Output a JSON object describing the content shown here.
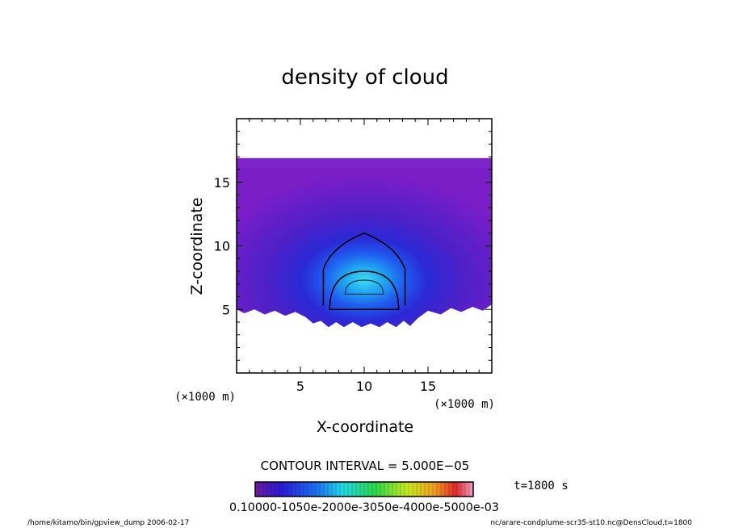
{
  "chart_data": {
    "type": "heatmap",
    "title": "density of cloud",
    "xlabel": "X-coordinate",
    "ylabel": "Z-coordinate",
    "x_unit": "(×1000 m)",
    "y_unit": "(×1000 m)",
    "xlim": [
      0,
      20
    ],
    "ylim": [
      0,
      20
    ],
    "x_ticks": [
      5,
      10,
      15
    ],
    "y_ticks": [
      5,
      10,
      15
    ],
    "contour_interval_label": "CONTOUR INTERVAL = 5.000E−05",
    "time_label": "t=1800 s",
    "colorbar_labels": "0.10000-1050e-2000e-3050e-4000e-5000e-03",
    "colorbar_range": [
      0.0,
      0.0005
    ],
    "footer_left": "/home/kitamo/bin/gpview_dump   2006-02-17",
    "footer_right": "nc/arare-condplume-scr35-st10.nc@DensCloud,t=1800",
    "field": {
      "top_z": 16.9,
      "bottom_edge_z_range": [
        3.6,
        5.2
      ],
      "core_center": [
        10,
        6.5
      ],
      "contours": [
        {
          "level": 5e-05,
          "description": "outer dome",
          "x_range": [
            6.8,
            13.2
          ],
          "z_top": 11.0,
          "z_bottom": 5.3
        },
        {
          "level": 0.0001,
          "description": "middle dome",
          "x_range": [
            7.3,
            12.7
          ],
          "z_top": 8.0,
          "z_bottom": 5.0
        },
        {
          "level": 0.00015,
          "description": "inner dome",
          "x_range": [
            8.5,
            11.5
          ],
          "z_top": 7.3,
          "z_bottom": 6.2
        }
      ]
    }
  },
  "colors": {
    "background": "#ffffff",
    "low": "#7a1ec8",
    "mid": "#2a2ad6",
    "high": "#22d8e6"
  }
}
